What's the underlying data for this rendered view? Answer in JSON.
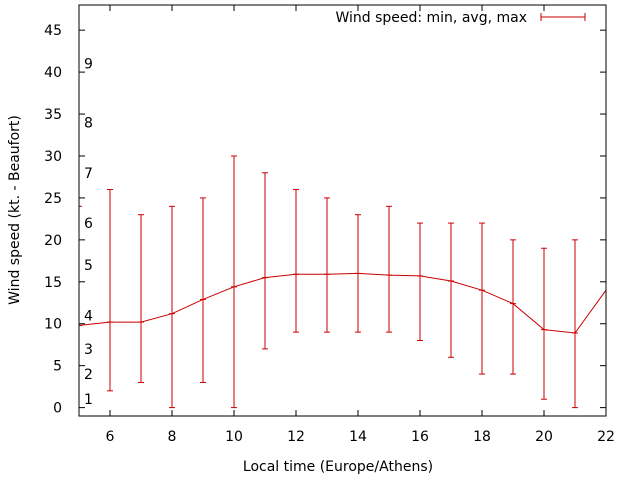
{
  "chart_data": {
    "type": "line",
    "title": "",
    "xlabel": "Local time (Europe/Athens)",
    "ylabel": "Wind speed (kt. - Beaufort)",
    "xlim": [
      5,
      22
    ],
    "ylim": [
      -1,
      48
    ],
    "x_ticks": [
      6,
      8,
      10,
      12,
      14,
      16,
      18,
      20,
      22
    ],
    "y_ticks": [
      0,
      5,
      10,
      15,
      20,
      25,
      30,
      35,
      40,
      45
    ],
    "grid": false,
    "legend": {
      "position": "top-right",
      "label": "Wind speed: min, avg, max"
    },
    "beaufort_labels": [
      {
        "label": "1",
        "value": 1
      },
      {
        "label": "2",
        "value": 4
      },
      {
        "label": "3",
        "value": 7
      },
      {
        "label": "4",
        "value": 11
      },
      {
        "label": "5",
        "value": 17
      },
      {
        "label": "6",
        "value": 22
      },
      {
        "label": "7",
        "value": 28
      },
      {
        "label": "8",
        "value": 34
      },
      {
        "label": "9",
        "value": 41
      }
    ],
    "series": [
      {
        "name": "Wind speed: min, avg, max",
        "color": "#cc0000",
        "x": [
          5,
          6,
          7,
          8,
          9,
          10,
          11,
          12,
          13,
          14,
          15,
          16,
          17,
          18,
          19,
          20,
          21,
          22
        ],
        "avg": [
          9.8,
          10.2,
          10.2,
          11.2,
          12.9,
          14.4,
          15.5,
          15.9,
          15.9,
          16.0,
          15.8,
          15.7,
          15.1,
          14.0,
          12.4,
          9.3,
          8.9,
          14.0
        ],
        "min": [
          null,
          2,
          3,
          0,
          3,
          0,
          7,
          9,
          9,
          9,
          9,
          8,
          6,
          4,
          4,
          1,
          0,
          null
        ],
        "max": [
          24,
          26,
          23,
          24,
          25,
          30,
          28,
          26,
          25,
          23,
          24,
          22,
          22,
          22,
          20,
          19,
          20,
          null
        ]
      }
    ]
  }
}
